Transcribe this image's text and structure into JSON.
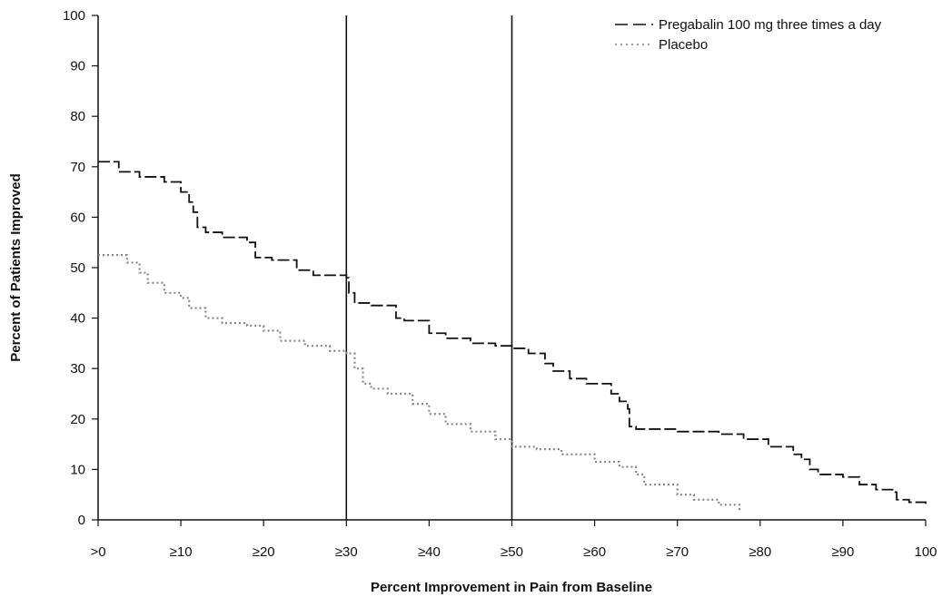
{
  "chart_data": {
    "type": "line",
    "title": "",
    "xlabel": "Percent Improvement in Pain from Baseline",
    "ylabel": "Percent of Patients Improved",
    "xlim": [
      0,
      100
    ],
    "ylim": [
      0,
      100
    ],
    "x_ticks": [
      {
        "value": 0,
        "label": ">0"
      },
      {
        "value": 10,
        "label": "≥10"
      },
      {
        "value": 20,
        "label": "≥20"
      },
      {
        "value": 30,
        "label": "≥30"
      },
      {
        "value": 40,
        "label": "≥40"
      },
      {
        "value": 50,
        "label": "≥50"
      },
      {
        "value": 60,
        "label": "≥60"
      },
      {
        "value": 70,
        "label": "≥70"
      },
      {
        "value": 80,
        "label": "≥80"
      },
      {
        "value": 90,
        "label": "≥90"
      },
      {
        "value": 100,
        "label": "100"
      }
    ],
    "y_ticks": [
      0,
      10,
      20,
      30,
      40,
      50,
      60,
      70,
      80,
      90,
      100
    ],
    "reference_lines_x": [
      30,
      50
    ],
    "grid": false,
    "legend_position": "top-right",
    "series": [
      {
        "name": "Pregabalin 100 mg three times a day",
        "style": "dashed",
        "color": "#111111",
        "x": [
          0,
          2,
          2.5,
          5,
          8,
          10,
          11,
          11.5,
          12,
          13,
          15,
          18,
          19,
          21,
          24,
          26,
          30,
          30.3,
          31,
          33,
          36,
          37,
          40,
          42,
          45,
          48,
          50,
          52,
          54,
          55,
          57,
          59,
          62,
          63,
          64,
          64.2,
          65,
          70,
          75,
          78,
          81,
          84,
          85,
          86,
          87,
          90,
          92,
          94,
          96,
          96.5,
          98,
          100
        ],
        "y": [
          71,
          71,
          69,
          68,
          67,
          65,
          63,
          61,
          58,
          57,
          56,
          55,
          52,
          51.5,
          49.5,
          48.5,
          48,
          45,
          43,
          42.5,
          40,
          39.5,
          37,
          36,
          35,
          34.5,
          34,
          33,
          31,
          29.5,
          28,
          27,
          25,
          23.5,
          22,
          18.5,
          18,
          17.5,
          17,
          16,
          14.5,
          13,
          12,
          10,
          9,
          8.5,
          7,
          6,
          5.5,
          4,
          3.5,
          2.5
        ]
      },
      {
        "name": "Placebo",
        "style": "dotted",
        "color": "#888888",
        "x": [
          0,
          2,
          3.5,
          5,
          6,
          8,
          10,
          11,
          13,
          15,
          18,
          20,
          22,
          25,
          28,
          30,
          31,
          32,
          33,
          35,
          38,
          40,
          42,
          45,
          48,
          50,
          53,
          56,
          60,
          63,
          65,
          66,
          70,
          72,
          75,
          77.5
        ],
        "y": [
          52.5,
          52.5,
          51,
          49,
          47,
          45,
          44,
          42,
          40,
          39,
          38.5,
          37.5,
          35.5,
          34.5,
          33.5,
          33,
          30,
          27,
          26,
          25,
          23,
          21,
          19,
          17.5,
          16,
          14.5,
          14,
          13,
          11.5,
          10.5,
          9,
          7,
          5,
          4,
          3,
          1.5
        ]
      }
    ]
  }
}
